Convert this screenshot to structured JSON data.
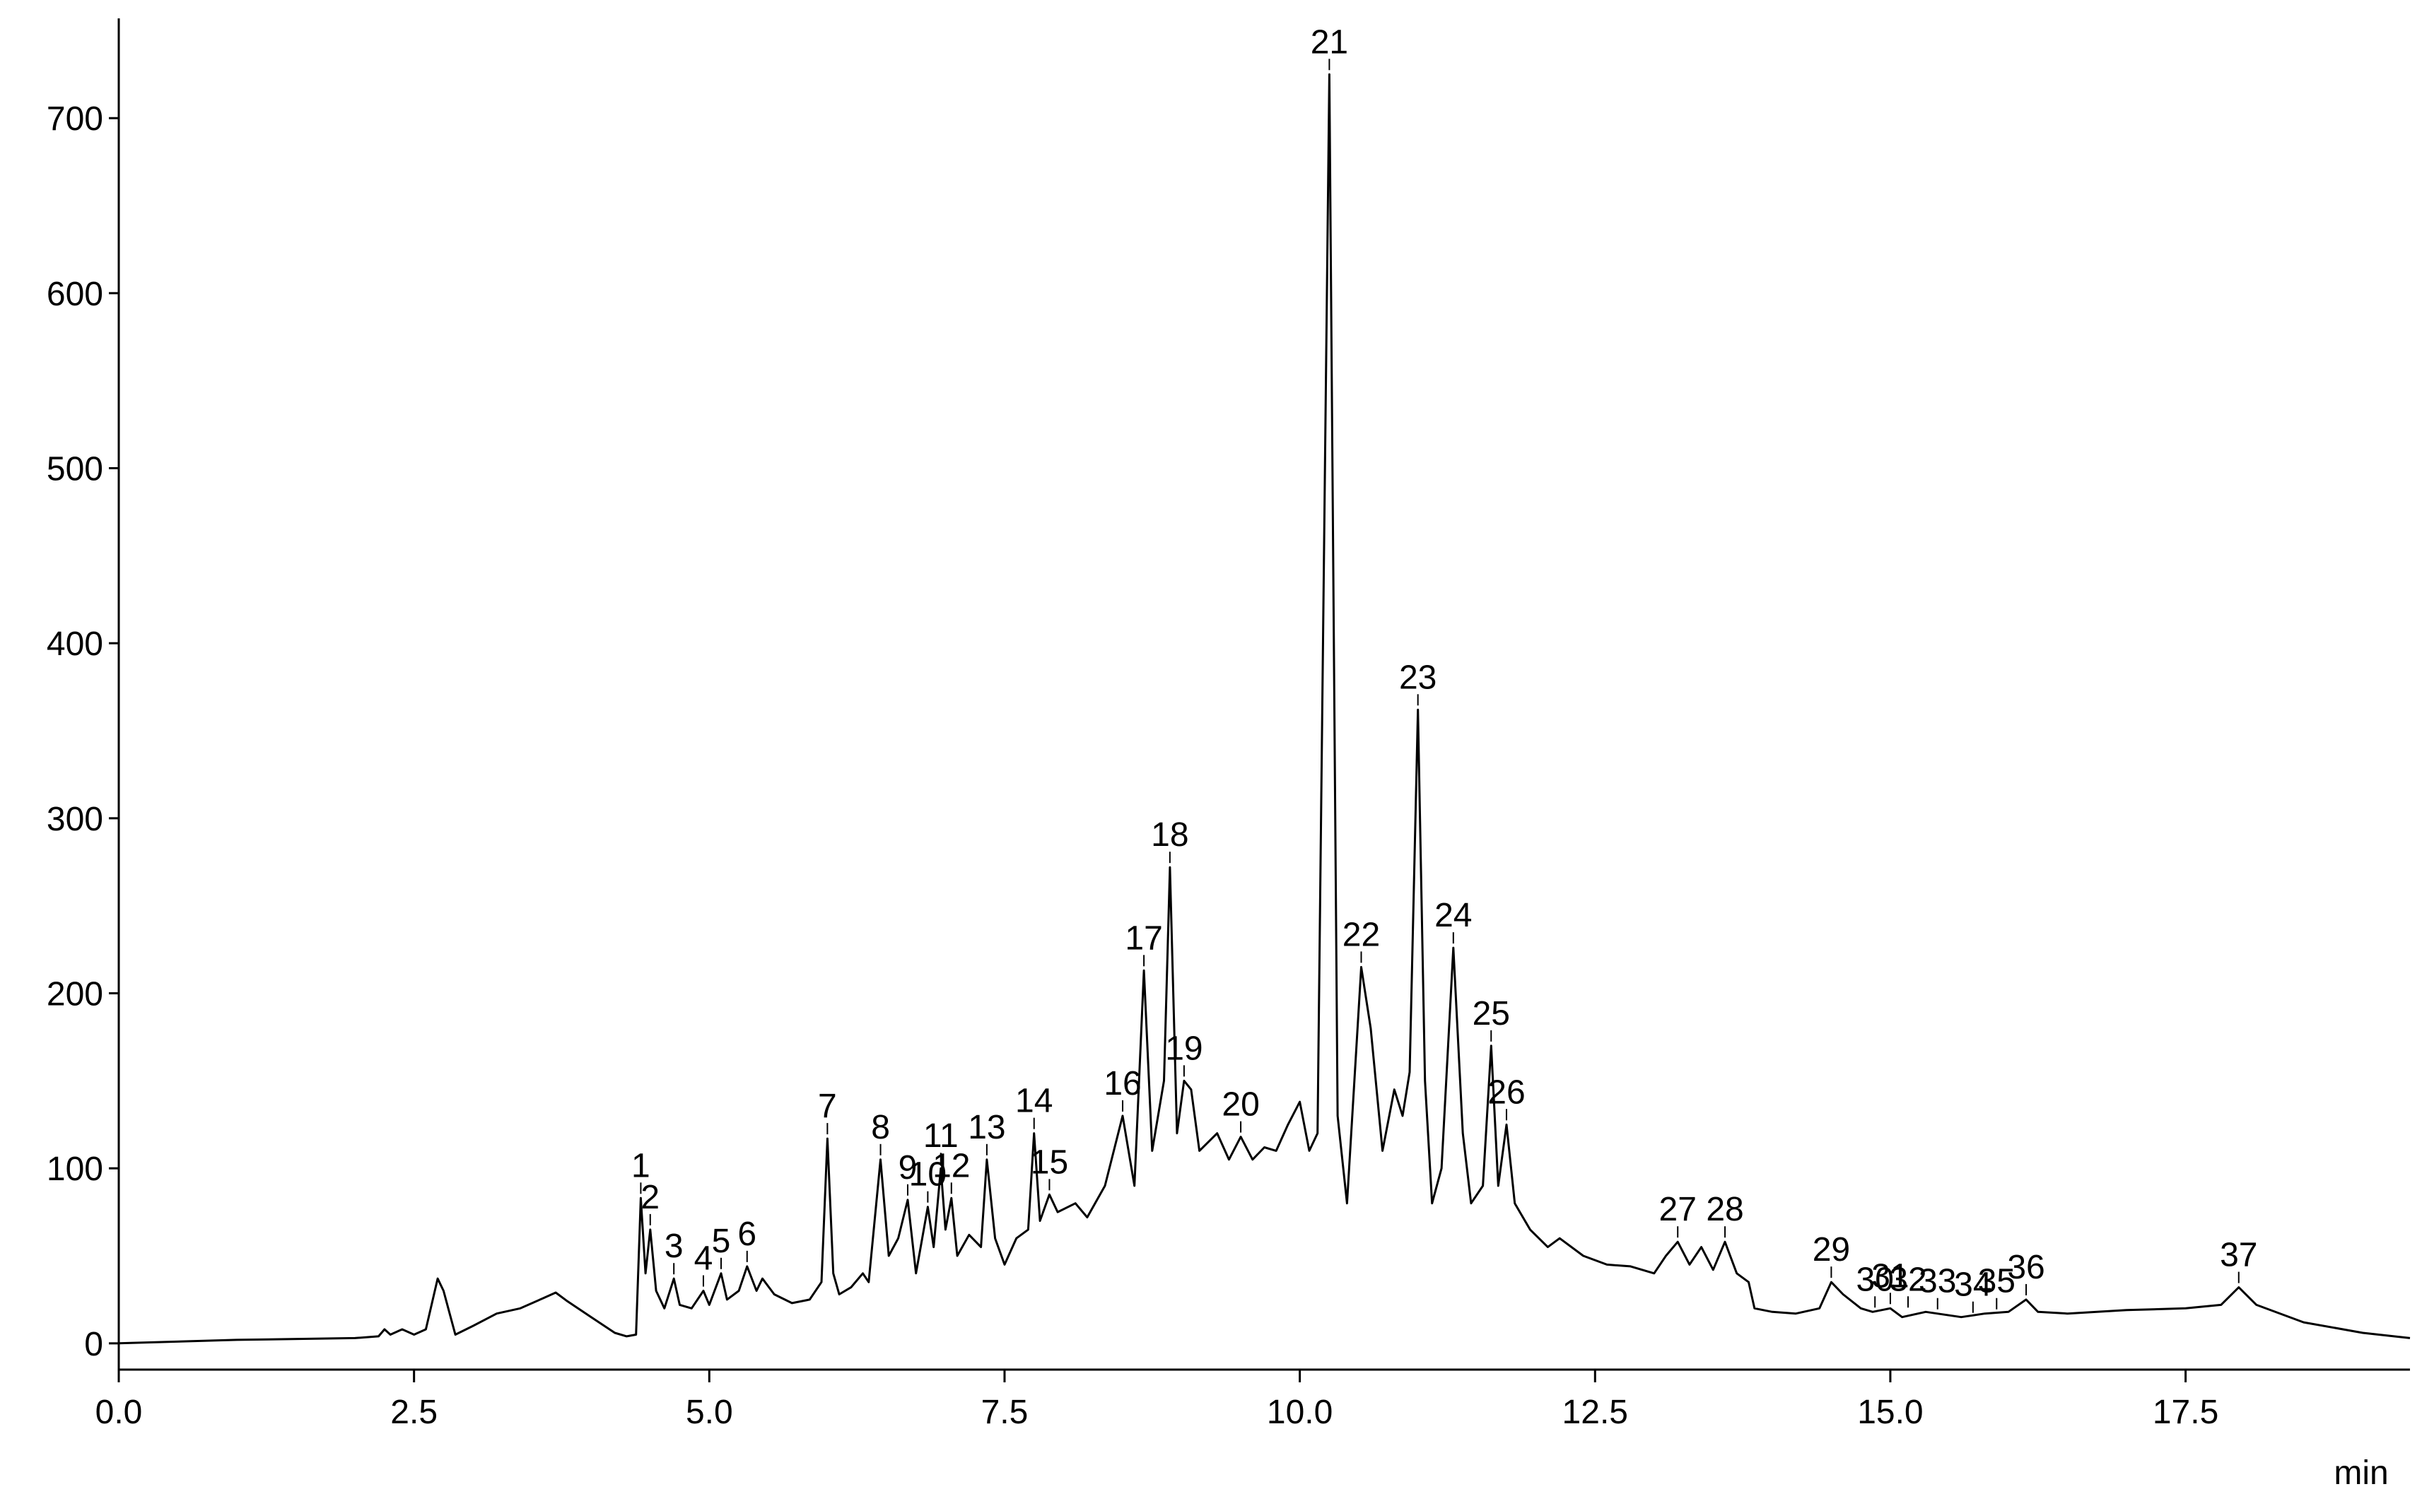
{
  "chart_data": {
    "type": "line",
    "x_label": "min",
    "color": "#000000",
    "xlim": [
      0,
      19.4
    ],
    "ylim": [
      -15,
      757
    ],
    "xticks": [
      {
        "value": 0,
        "label": "0.0"
      },
      2.5,
      {
        "value": 5,
        "label": "5.0"
      },
      7.5,
      {
        "value": 10,
        "label": "10.0"
      },
      12.5,
      {
        "value": 15,
        "label": "15.0"
      },
      17.5
    ],
    "yticks": [
      0,
      100,
      200,
      300,
      400,
      500,
      600,
      700
    ],
    "grid": false,
    "x": [
      0,
      1,
      2,
      2.2,
      2.25,
      2.3,
      2.4,
      2.5,
      2.6,
      2.7,
      2.75,
      2.85,
      3.0,
      3.2,
      3.4,
      3.6,
      3.7,
      3.8,
      4.0,
      4.2,
      4.3,
      4.38,
      4.42,
      4.46,
      4.5,
      4.55,
      4.62,
      4.7,
      4.75,
      4.85,
      4.95,
      5.0,
      5.1,
      5.15,
      5.25,
      5.32,
      5.4,
      5.45,
      5.55,
      5.7,
      5.85,
      5.95,
      6.0,
      6.05,
      6.1,
      6.2,
      6.3,
      6.35,
      6.45,
      6.52,
      6.6,
      6.68,
      6.75,
      6.85,
      6.9,
      6.96,
      7.0,
      7.05,
      7.1,
      7.2,
      7.3,
      7.35,
      7.42,
      7.5,
      7.6,
      7.7,
      7.75,
      7.8,
      7.88,
      7.95,
      8.1,
      8.2,
      8.35,
      8.5,
      8.6,
      8.68,
      8.75,
      8.85,
      8.9,
      8.96,
      9.02,
      9.08,
      9.15,
      9.3,
      9.4,
      9.5,
      9.6,
      9.7,
      9.8,
      9.9,
      10.0,
      10.08,
      10.15,
      10.25,
      10.32,
      10.4,
      10.52,
      10.6,
      10.7,
      10.8,
      10.87,
      10.93,
      11.0,
      11.06,
      11.12,
      11.2,
      11.3,
      11.38,
      11.45,
      11.55,
      11.62,
      11.68,
      11.75,
      11.82,
      11.95,
      12.1,
      12.2,
      12.4,
      12.6,
      12.8,
      13.0,
      13.1,
      13.2,
      13.3,
      13.4,
      13.5,
      13.6,
      13.7,
      13.8,
      13.85,
      14.0,
      14.2,
      14.4,
      14.5,
      14.6,
      14.75,
      14.85,
      15.0,
      15.1,
      15.3,
      15.6,
      15.8,
      16.0,
      16.15,
      16.25,
      16.5,
      17.0,
      17.5,
      17.8,
      17.95,
      18.1,
      18.5,
      19.0,
      19.4
    ],
    "values": [
      0,
      2,
      3,
      4,
      8,
      5,
      8,
      5,
      8,
      37,
      30,
      5,
      10,
      17,
      20,
      26,
      29,
      24,
      15,
      6,
      4,
      5,
      83,
      40,
      65,
      30,
      20,
      37,
      22,
      20,
      30,
      22,
      40,
      25,
      30,
      44,
      30,
      37,
      28,
      23,
      25,
      35,
      117,
      40,
      28,
      32,
      40,
      35,
      105,
      50,
      60,
      82,
      40,
      78,
      55,
      100,
      65,
      83,
      50,
      62,
      55,
      105,
      60,
      45,
      60,
      65,
      120,
      70,
      85,
      75,
      80,
      72,
      90,
      130,
      90,
      213,
      110,
      150,
      272,
      120,
      150,
      145,
      110,
      120,
      105,
      118,
      105,
      112,
      110,
      125,
      138,
      110,
      120,
      725,
      130,
      80,
      215,
      180,
      110,
      145,
      130,
      155,
      362,
      150,
      80,
      100,
      226,
      120,
      80,
      90,
      170,
      90,
      125,
      80,
      65,
      55,
      60,
      50,
      45,
      44,
      40,
      50,
      58,
      45,
      55,
      42,
      58,
      40,
      35,
      20,
      18,
      17,
      20,
      35,
      28,
      20,
      18,
      20,
      15,
      18,
      15,
      17,
      18,
      25,
      18,
      17,
      19,
      20,
      22,
      32,
      22,
      12,
      6,
      3
    ],
    "peaks": [
      {
        "label": "1",
        "x": 4.42,
        "y": 83
      },
      {
        "label": "2",
        "x": 4.5,
        "y": 65
      },
      {
        "label": "3",
        "x": 4.7,
        "y": 37
      },
      {
        "label": "4",
        "x": 4.95,
        "y": 30
      },
      {
        "label": "5",
        "x": 5.1,
        "y": 40
      },
      {
        "label": "6",
        "x": 5.32,
        "y": 44
      },
      {
        "label": "7",
        "x": 6.0,
        "y": 117
      },
      {
        "label": "8",
        "x": 6.45,
        "y": 105
      },
      {
        "label": "9",
        "x": 6.68,
        "y": 82
      },
      {
        "label": "10",
        "x": 6.85,
        "y": 78
      },
      {
        "label": "11",
        "x": 6.96,
        "y": 100
      },
      {
        "label": "12",
        "x": 7.05,
        "y": 83
      },
      {
        "label": "13",
        "x": 7.35,
        "y": 105
      },
      {
        "label": "14",
        "x": 7.75,
        "y": 120
      },
      {
        "label": "15",
        "x": 7.88,
        "y": 85
      },
      {
        "label": "16",
        "x": 8.5,
        "y": 130
      },
      {
        "label": "17",
        "x": 8.68,
        "y": 213
      },
      {
        "label": "18",
        "x": 8.9,
        "y": 272
      },
      {
        "label": "19",
        "x": 9.02,
        "y": 150
      },
      {
        "label": "20",
        "x": 9.5,
        "y": 118
      },
      {
        "label": "21",
        "x": 10.25,
        "y": 725
      },
      {
        "label": "22",
        "x": 10.52,
        "y": 215
      },
      {
        "label": "23",
        "x": 11.0,
        "y": 362
      },
      {
        "label": "24",
        "x": 11.3,
        "y": 226
      },
      {
        "label": "25",
        "x": 11.62,
        "y": 170
      },
      {
        "label": "26",
        "x": 11.75,
        "y": 125
      },
      {
        "label": "27",
        "x": 13.2,
        "y": 58
      },
      {
        "label": "28",
        "x": 13.6,
        "y": 58
      },
      {
        "label": "29",
        "x": 14.5,
        "y": 35
      },
      {
        "label": "30",
        "x": 14.87,
        "y": 18
      },
      {
        "label": "31",
        "x": 15.0,
        "y": 20
      },
      {
        "label": "32",
        "x": 15.15,
        "y": 18
      },
      {
        "label": "33",
        "x": 15.4,
        "y": 17
      },
      {
        "label": "34",
        "x": 15.7,
        "y": 15
      },
      {
        "label": "35",
        "x": 15.9,
        "y": 17
      },
      {
        "label": "36",
        "x": 16.15,
        "y": 25
      },
      {
        "label": "37",
        "x": 17.95,
        "y": 32
      }
    ]
  }
}
